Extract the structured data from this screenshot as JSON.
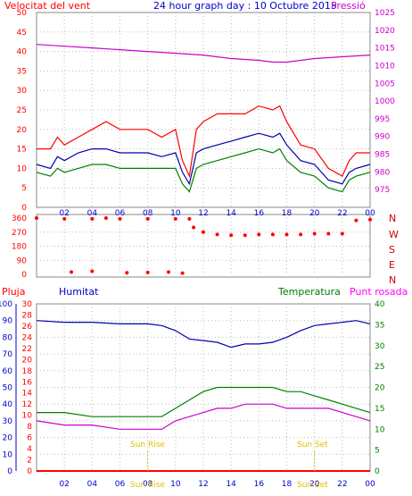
{
  "header": {
    "left": "Velocitat del vent",
    "center": "24 hour graph day : 10 Octubre 2015",
    "right": "Pressió"
  },
  "labels": {
    "pluja": "Pluja",
    "humitat": "Humitat",
    "temperatura": "Temperatura",
    "punt_rosada": "Punt rosada",
    "sunrise": "Sun Rise",
    "sunset": "Sun Set",
    "sunrise_tick": "Sun Rise",
    "sunset_tick": "Sun Set",
    "compass": [
      "N",
      "W",
      "S",
      "E",
      "N"
    ]
  },
  "colors": {
    "wind_max": "#ff0000",
    "wind_avg": "#0000aa",
    "wind_min": "#008000",
    "pressure": "#cc00cc",
    "humidity": "#0000aa",
    "temperature": "#008000",
    "dewpoint": "#cc00cc",
    "rain": "#ff0000",
    "sun": "#e0c000"
  },
  "chart_data": [
    {
      "type": "line",
      "id": "wind-pressure",
      "x_ticks": [
        "02",
        "04",
        "06",
        "08",
        "10",
        "12",
        "14",
        "16",
        "18",
        "20",
        "22",
        "00"
      ],
      "ylim_left": [
        0,
        50
      ],
      "y_ticks_left": [
        "0",
        "5",
        "10",
        "15",
        "20",
        "25",
        "30",
        "35",
        "40",
        "45",
        "50"
      ],
      "ylim_right": [
        970,
        1025
      ],
      "y_ticks_right": [
        "975",
        "980",
        "985",
        "990",
        "995",
        "1000",
        "1005",
        "1010",
        "1015",
        "1020",
        "1025"
      ],
      "grid": true,
      "series": [
        {
          "key": "wind_max",
          "points": [
            [
              0,
              15
            ],
            [
              1,
              15
            ],
            [
              1.5,
              18
            ],
            [
              2,
              16
            ],
            [
              3,
              18
            ],
            [
              4,
              20
            ],
            [
              5,
              22
            ],
            [
              6,
              20
            ],
            [
              7,
              20
            ],
            [
              8,
              20
            ],
            [
              9,
              18
            ],
            [
              10,
              20
            ],
            [
              10.5,
              12
            ],
            [
              11,
              8
            ],
            [
              11.5,
              20
            ],
            [
              12,
              22
            ],
            [
              13,
              24
            ],
            [
              14,
              24
            ],
            [
              15,
              24
            ],
            [
              16,
              26
            ],
            [
              17,
              25
            ],
            [
              17.5,
              26
            ],
            [
              18,
              22
            ],
            [
              19,
              16
            ],
            [
              20,
              15
            ],
            [
              21,
              10
            ],
            [
              22,
              8
            ],
            [
              22.5,
              12
            ],
            [
              23,
              14
            ],
            [
              24,
              14
            ]
          ]
        },
        {
          "key": "wind_avg",
          "points": [
            [
              0,
              11
            ],
            [
              1,
              10
            ],
            [
              1.5,
              13
            ],
            [
              2,
              12
            ],
            [
              3,
              14
            ],
            [
              4,
              15
            ],
            [
              5,
              15
            ],
            [
              6,
              14
            ],
            [
              7,
              14
            ],
            [
              8,
              14
            ],
            [
              9,
              13
            ],
            [
              10,
              14
            ],
            [
              10.5,
              9
            ],
            [
              11,
              6
            ],
            [
              11.5,
              14
            ],
            [
              12,
              15
            ],
            [
              13,
              16
            ],
            [
              14,
              17
            ],
            [
              15,
              18
            ],
            [
              16,
              19
            ],
            [
              17,
              18
            ],
            [
              17.5,
              19
            ],
            [
              18,
              16
            ],
            [
              19,
              12
            ],
            [
              20,
              11
            ],
            [
              21,
              7
            ],
            [
              22,
              6
            ],
            [
              22.5,
              9
            ],
            [
              23,
              10
            ],
            [
              24,
              11
            ]
          ]
        },
        {
          "key": "wind_min",
          "points": [
            [
              0,
              9
            ],
            [
              1,
              8
            ],
            [
              1.5,
              10
            ],
            [
              2,
              9
            ],
            [
              3,
              10
            ],
            [
              4,
              11
            ],
            [
              5,
              11
            ],
            [
              6,
              10
            ],
            [
              7,
              10
            ],
            [
              8,
              10
            ],
            [
              9,
              10
            ],
            [
              10,
              10
            ],
            [
              10.5,
              6
            ],
            [
              11,
              4
            ],
            [
              11.5,
              10
            ],
            [
              12,
              11
            ],
            [
              13,
              12
            ],
            [
              14,
              13
            ],
            [
              15,
              14
            ],
            [
              16,
              15
            ],
            [
              17,
              14
            ],
            [
              17.5,
              15
            ],
            [
              18,
              12
            ],
            [
              19,
              9
            ],
            [
              20,
              8
            ],
            [
              21,
              5
            ],
            [
              22,
              4
            ],
            [
              22.5,
              7
            ],
            [
              23,
              8
            ],
            [
              24,
              9
            ]
          ]
        },
        {
          "key": "pressure",
          "axis": "right",
          "points": [
            [
              0,
              1016
            ],
            [
              2,
              1015.5
            ],
            [
              4,
              1015
            ],
            [
              6,
              1014.5
            ],
            [
              8,
              1014
            ],
            [
              10,
              1013.5
            ],
            [
              12,
              1013
            ],
            [
              14,
              1012
            ],
            [
              16,
              1011.5
            ],
            [
              17,
              1011
            ],
            [
              18,
              1011
            ],
            [
              19,
              1011.5
            ],
            [
              20,
              1012
            ],
            [
              22,
              1012.5
            ],
            [
              24,
              1013
            ]
          ]
        }
      ]
    },
    {
      "type": "scatter",
      "id": "wind-direction",
      "ylim": [
        0,
        360
      ],
      "y_ticks": [
        "0",
        "90",
        "180",
        "270",
        "360"
      ],
      "series": [
        {
          "key": "direction",
          "points": [
            [
              0,
              360
            ],
            [
              2,
              355
            ],
            [
              4,
              355
            ],
            [
              5,
              360
            ],
            [
              6,
              355
            ],
            [
              8,
              355
            ],
            [
              10,
              355
            ],
            [
              11,
              355
            ],
            [
              11.3,
              300
            ],
            [
              12,
              270
            ],
            [
              13,
              255
            ],
            [
              14,
              250
            ],
            [
              15,
              250
            ],
            [
              16,
              255
            ],
            [
              17,
              255
            ],
            [
              18,
              255
            ],
            [
              19,
              255
            ],
            [
              20,
              260
            ],
            [
              21,
              260
            ],
            [
              22,
              260
            ],
            [
              23,
              345
            ],
            [
              24,
              350
            ],
            [
              2.5,
              15
            ],
            [
              4,
              20
            ],
            [
              6.5,
              10
            ],
            [
              8,
              12
            ],
            [
              9.5,
              15
            ],
            [
              10.5,
              8
            ]
          ]
        }
      ]
    },
    {
      "type": "line",
      "id": "humidity-temperature",
      "ylim_humidity": [
        0,
        100
      ],
      "y_ticks_humidity": [
        "0",
        "10",
        "20",
        "30",
        "40",
        "50",
        "60",
        "70",
        "80",
        "90",
        "100"
      ],
      "ylim_rain": [
        0,
        30
      ],
      "y_ticks_rain": [
        "0",
        "2",
        "4",
        "6",
        "8",
        "10",
        "12",
        "14",
        "16",
        "18",
        "20",
        "22",
        "24",
        "26",
        "28",
        "30"
      ],
      "ylim_temp": [
        0,
        40
      ],
      "y_ticks_temp": [
        "0",
        "5",
        "10",
        "15",
        "20",
        "25",
        "30",
        "35",
        "40"
      ],
      "series": [
        {
          "key": "humidity",
          "points": [
            [
              0,
              90
            ],
            [
              2,
              89
            ],
            [
              4,
              89
            ],
            [
              6,
              88
            ],
            [
              8,
              88
            ],
            [
              9,
              87
            ],
            [
              10,
              84
            ],
            [
              11,
              79
            ],
            [
              12,
              78
            ],
            [
              13,
              77
            ],
            [
              14,
              74
            ],
            [
              15,
              76
            ],
            [
              16,
              76
            ],
            [
              17,
              77
            ],
            [
              18,
              80
            ],
            [
              19,
              84
            ],
            [
              20,
              87
            ],
            [
              21,
              88
            ],
            [
              22,
              89
            ],
            [
              23,
              90
            ],
            [
              24,
              88
            ]
          ]
        },
        {
          "key": "temperature",
          "points": [
            [
              0,
              14
            ],
            [
              2,
              14
            ],
            [
              4,
              13
            ],
            [
              6,
              13
            ],
            [
              8,
              13
            ],
            [
              9,
              13
            ],
            [
              10,
              15
            ],
            [
              11,
              17
            ],
            [
              12,
              19
            ],
            [
              13,
              20
            ],
            [
              14,
              20
            ],
            [
              15,
              20
            ],
            [
              16,
              20
            ],
            [
              17,
              20
            ],
            [
              18,
              19
            ],
            [
              19,
              19
            ],
            [
              20,
              18
            ],
            [
              21,
              17
            ],
            [
              22,
              16
            ],
            [
              23,
              15
            ],
            [
              24,
              14
            ]
          ]
        },
        {
          "key": "dewpoint",
          "points": [
            [
              0,
              12
            ],
            [
              2,
              11
            ],
            [
              4,
              11
            ],
            [
              6,
              10
            ],
            [
              8,
              10
            ],
            [
              9,
              10
            ],
            [
              10,
              12
            ],
            [
              11,
              13
            ],
            [
              12,
              14
            ],
            [
              13,
              15
            ],
            [
              14,
              15
            ],
            [
              15,
              16
            ],
            [
              16,
              16
            ],
            [
              17,
              16
            ],
            [
              18,
              15
            ],
            [
              19,
              15
            ],
            [
              20,
              15
            ],
            [
              21,
              15
            ],
            [
              22,
              14
            ],
            [
              23,
              13
            ],
            [
              24,
              12
            ]
          ]
        },
        {
          "key": "rain",
          "points": [
            [
              0,
              0
            ],
            [
              24,
              0
            ]
          ]
        }
      ],
      "sunrise_hour": 8,
      "sunset_hour": 20
    }
  ]
}
